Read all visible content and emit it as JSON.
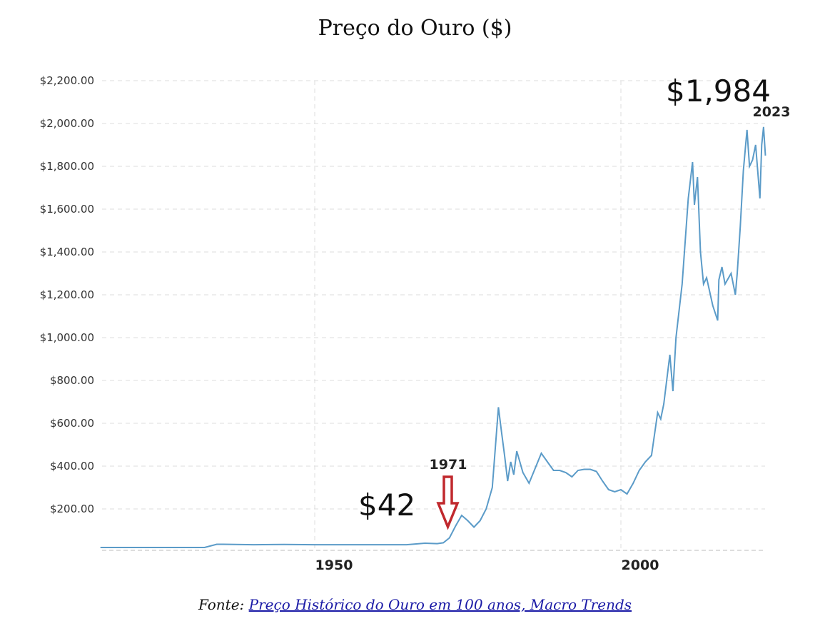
{
  "chart_data": {
    "type": "line",
    "title": "Preço do Ouro ($)",
    "xlabel": "",
    "ylabel": "",
    "xlim": [
      1915,
      2024
    ],
    "ylim": [
      0,
      2200
    ],
    "y_ticks": [
      {
        "value": 200,
        "label": "$200.00"
      },
      {
        "value": 400,
        "label": "$400.00"
      },
      {
        "value": 600,
        "label": "$600.00"
      },
      {
        "value": 800,
        "label": "$800.00"
      },
      {
        "value": 1000,
        "label": "$1,000.00"
      },
      {
        "value": 1200,
        "label": "$1,200.00"
      },
      {
        "value": 1400,
        "label": "$1,400.00"
      },
      {
        "value": 1600,
        "label": "$1,600.00"
      },
      {
        "value": 1800,
        "label": "$1,800.00"
      },
      {
        "value": 2000,
        "label": "$2,000.00"
      },
      {
        "value": 2200,
        "label": "$2,200.00"
      }
    ],
    "x_ticks": [
      {
        "value": 1950,
        "label": "1950"
      },
      {
        "value": 2000,
        "label": "2000"
      }
    ],
    "grid": true,
    "line_color": "#5b9bc8",
    "arrow_color": "#c0282d",
    "series": [
      {
        "x": [
          1915,
          1920,
          1925,
          1932,
          1934,
          1935,
          1940,
          1945,
          1950,
          1955,
          1960,
          1965,
          1968,
          1970,
          1971,
          1972,
          1973,
          1974,
          1975,
          1976,
          1977,
          1978,
          1979,
          1980,
          1980.5,
          1981,
          1981.5,
          1982,
          1982.5,
          1983,
          1984,
          1985,
          1986,
          1987,
          1988,
          1989,
          1990,
          1991,
          1992,
          1993,
          1994,
          1995,
          1996,
          1997,
          1998,
          1999,
          2000,
          2001,
          2002,
          2003,
          2004,
          2005,
          2006,
          2006.5,
          2007,
          2008,
          2008.5,
          2009,
          2010,
          2011,
          2011.7,
          2012,
          2012.5,
          2013,
          2013.5,
          2014,
          2015,
          2015.8,
          2016,
          2016.5,
          2017,
          2018,
          2018.7,
          2019,
          2019.5,
          2020,
          2020.6,
          2021,
          2021.5,
          2022,
          2022.7,
          2023,
          2023.3,
          2023.6
        ],
        "values": [
          20,
          20,
          20,
          20,
          35,
          35,
          33,
          34,
          33,
          33,
          33,
          33,
          40,
          38,
          42,
          65,
          120,
          170,
          145,
          115,
          145,
          200,
          300,
          675,
          560,
          450,
          330,
          420,
          360,
          470,
          370,
          320,
          390,
          460,
          420,
          380,
          380,
          370,
          350,
          380,
          385,
          385,
          375,
          330,
          290,
          280,
          290,
          270,
          320,
          380,
          420,
          450,
          650,
          620,
          690,
          920,
          750,
          1000,
          1250,
          1650,
          1820,
          1620,
          1750,
          1400,
          1250,
          1280,
          1150,
          1080,
          1270,
          1330,
          1250,
          1300,
          1200,
          1300,
          1520,
          1780,
          1970,
          1800,
          1830,
          1900,
          1650,
          1900,
          1984,
          1850
        ]
      }
    ],
    "annotations": {
      "start_value": "$42",
      "start_year": "1971",
      "end_value": "$1,984",
      "end_year": "2023"
    }
  },
  "source": {
    "prefix": "Fonte:",
    "link_text": "Preço Histórico do Ouro em 100 anos, Macro Trends"
  }
}
